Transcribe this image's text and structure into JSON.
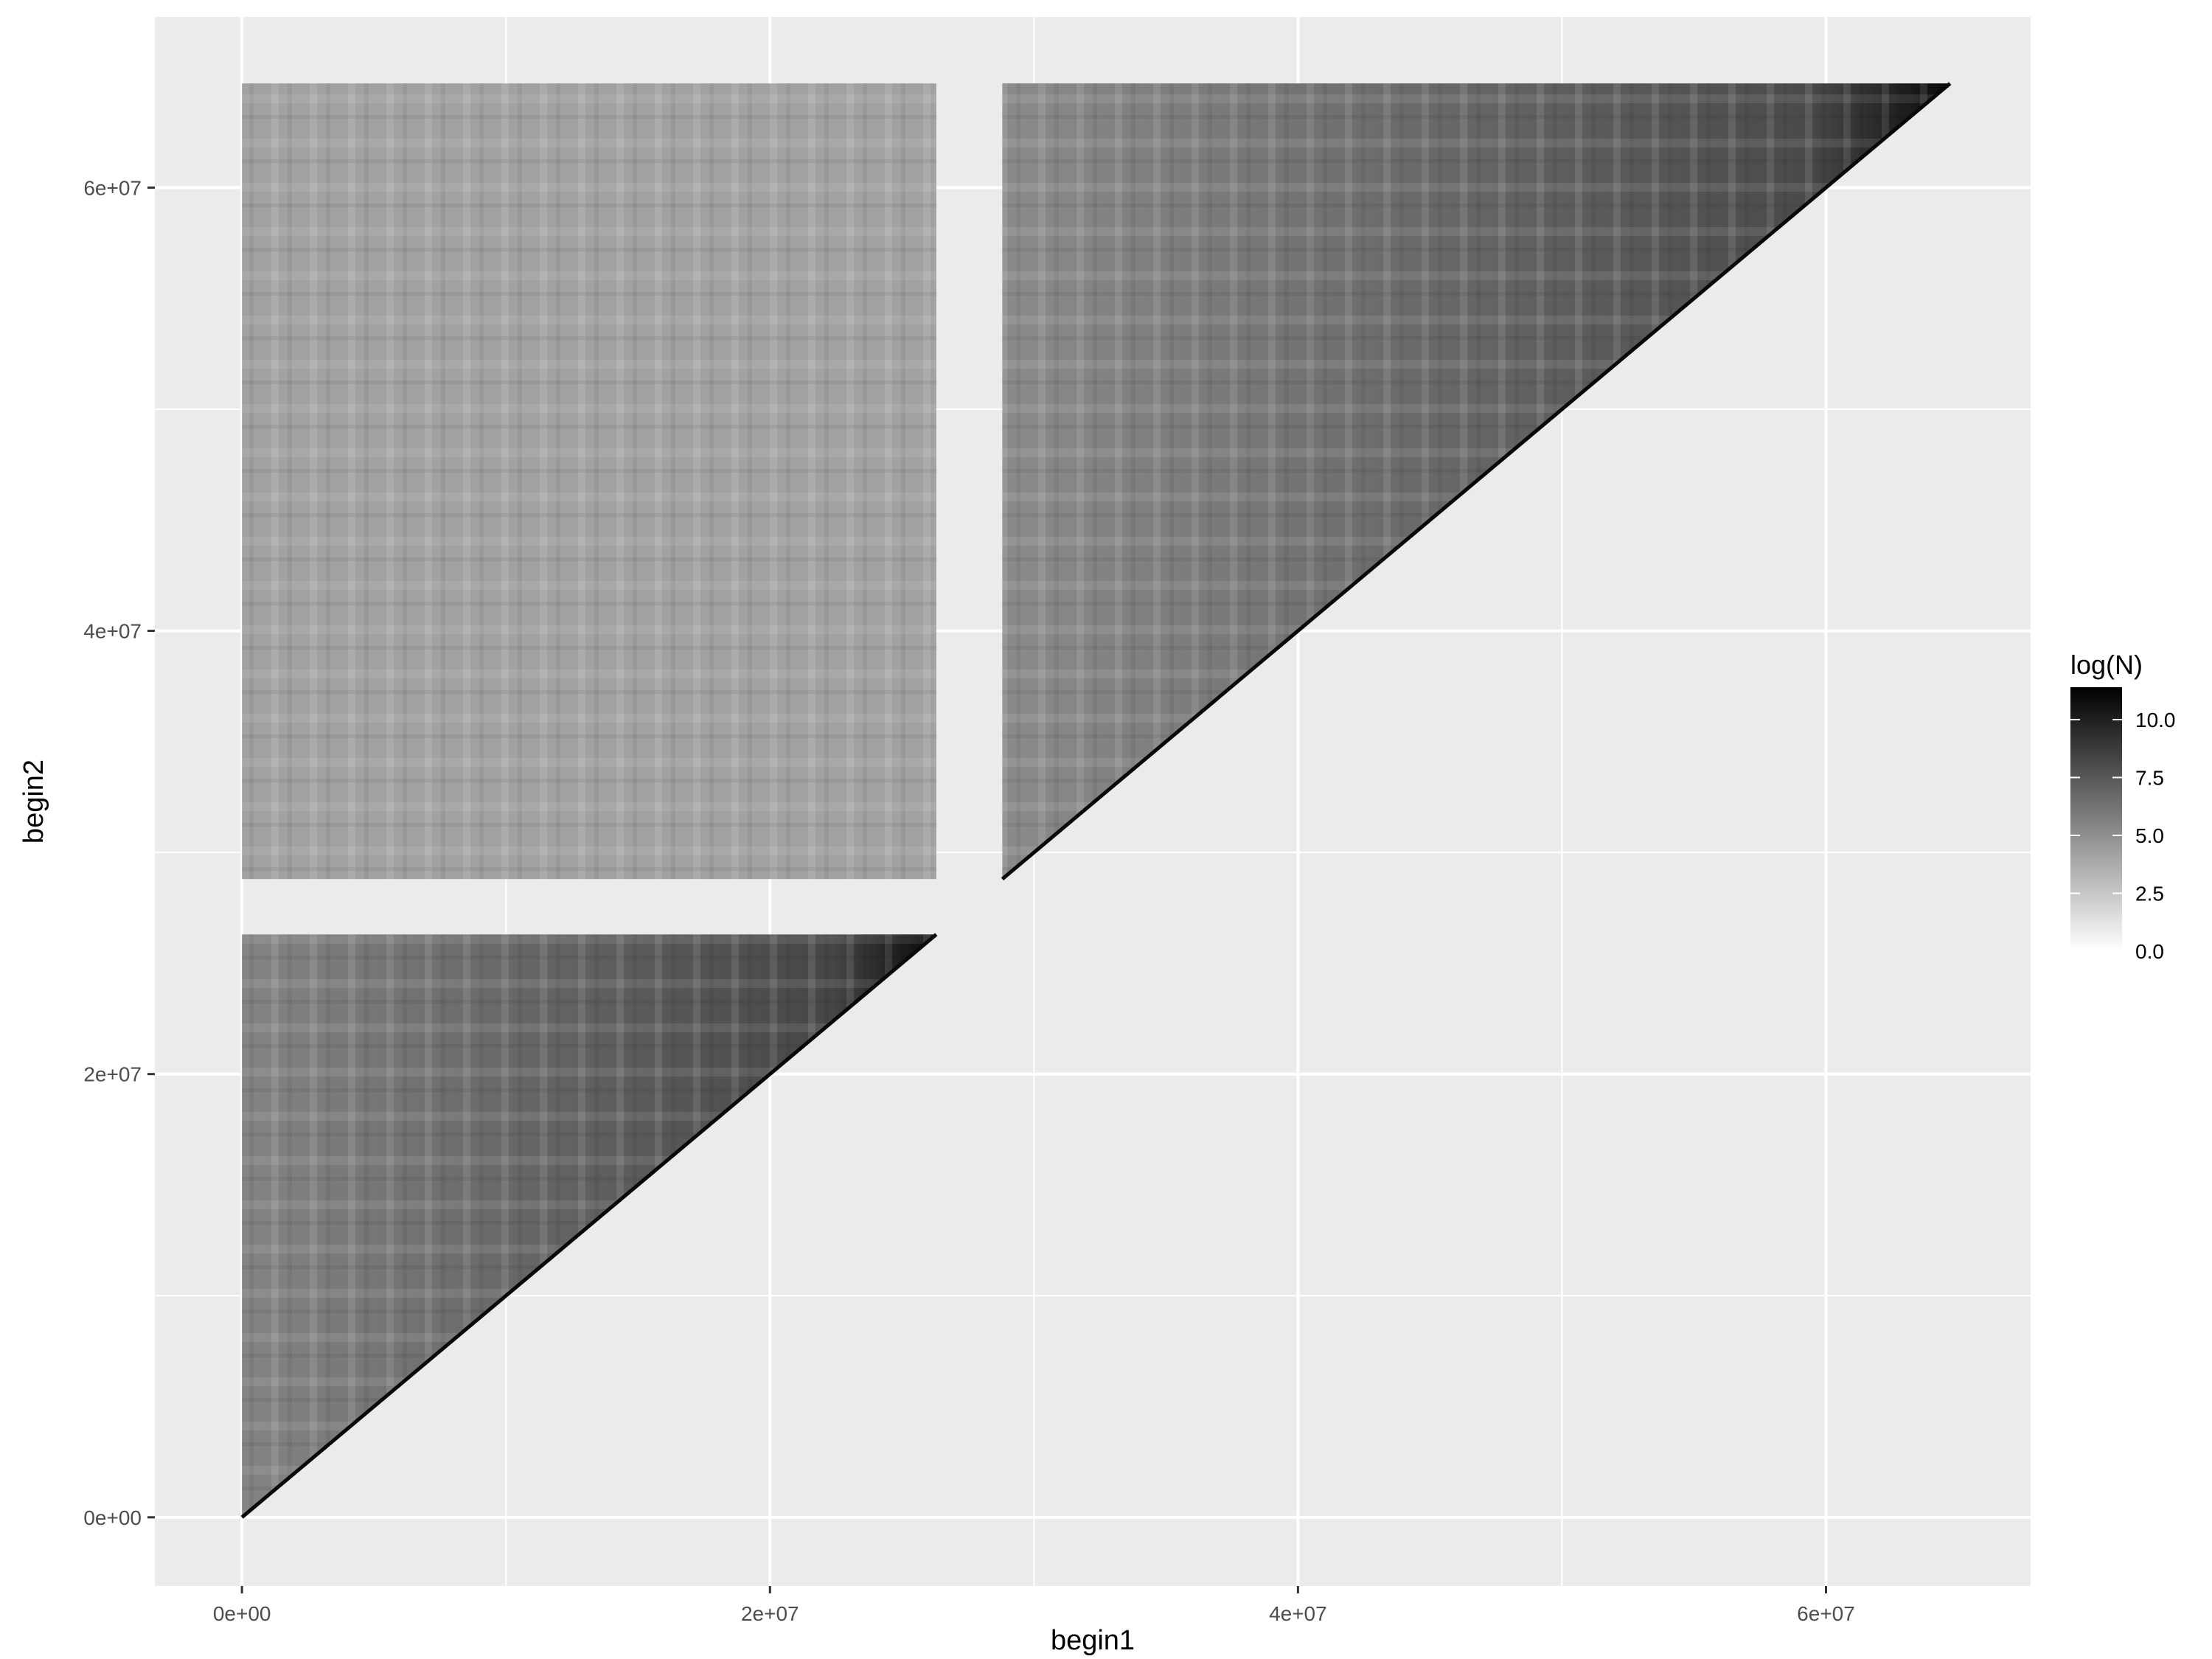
{
  "chart_data": {
    "type": "heatmap",
    "title": "",
    "xlabel": "begin1",
    "ylabel": "begin2",
    "xlim": [
      -3300000,
      67750000
    ],
    "ylim": [
      -3100000,
      67700000
    ],
    "x_ticks": [
      {
        "value": 0,
        "label": "0e+00"
      },
      {
        "value": 20000000,
        "label": "2e+07"
      },
      {
        "value": 40000000,
        "label": "4e+07"
      },
      {
        "value": 60000000,
        "label": "6e+07"
      }
    ],
    "y_ticks": [
      {
        "value": 0,
        "label": "0e+00"
      },
      {
        "value": 20000000,
        "label": "2e+07"
      },
      {
        "value": 40000000,
        "label": "4e+07"
      },
      {
        "value": 60000000,
        "label": "6e+07"
      }
    ],
    "grid": true,
    "colors": {
      "panel_background": "#ebebeb",
      "grid_line": "#ffffff",
      "low": "#ffffff",
      "high": "#000000"
    },
    "legend": {
      "title": "log(N)",
      "placement": "right",
      "min": 0,
      "max": 11.4,
      "breaks": [
        {
          "value": 0,
          "label": "0.0"
        },
        {
          "value": 2.5,
          "label": "2.5"
        },
        {
          "value": 5,
          "label": "5.0"
        },
        {
          "value": 7.5,
          "label": "7.5"
        },
        {
          "value": 10,
          "label": "10.0"
        }
      ]
    },
    "regions": [
      {
        "name": "lower-triangle",
        "shape": "triangle",
        "x_range": [
          0,
          26300000
        ],
        "y_range": [
          0,
          26300000
        ],
        "diagonal_log_n": 11,
        "far_log_n": 5.5
      },
      {
        "name": "inter-block",
        "shape": "rectangle",
        "x_range": [
          0,
          26300000
        ],
        "y_range": [
          28800000,
          64700000
        ],
        "mean_log_n": 4.2
      },
      {
        "name": "upper-triangle",
        "shape": "triangle",
        "x_range": [
          28800000,
          64700000
        ],
        "y_range": [
          28800000,
          64700000
        ],
        "diagonal_log_n": 11,
        "far_log_n": 5.2
      }
    ]
  }
}
